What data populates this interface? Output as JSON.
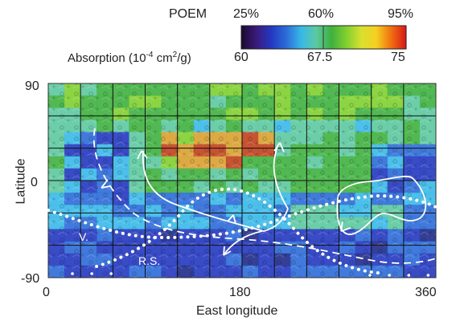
{
  "legend": {
    "poem_label": "POEM",
    "poem_ticks": [
      "25%",
      "60%",
      "95%"
    ],
    "absorption_label": "Absorption (10",
    "absorption_exp": "-4",
    "absorption_unit_mid": " cm",
    "absorption_unit_exp": "2",
    "absorption_unit_end": "/g)",
    "absorption_ticks": [
      "60",
      "67.5",
      "75"
    ],
    "colors": [
      "#1a0a2e",
      "#3a1a7a",
      "#2438c0",
      "#2c6cd8",
      "#38b8e8",
      "#5cc9a0",
      "#3fb03f",
      "#7fcf30",
      "#d8e030",
      "#f5d020",
      "#f07010",
      "#d81818"
    ]
  },
  "axes": {
    "ylabel": "Latitude",
    "y_ticks": [
      "90",
      "0",
      "-90"
    ],
    "xlabel": "East longitude",
    "x_ticks": [
      "0",
      "180",
      "360"
    ]
  },
  "annotations": {
    "v_label": "V.",
    "rs_label": "R.S."
  },
  "map_data": {
    "lon_range": [
      0,
      360
    ],
    "lat_range": [
      -90,
      90
    ],
    "grid_lon_step": 30,
    "grid_lat_step": 30
  }
}
